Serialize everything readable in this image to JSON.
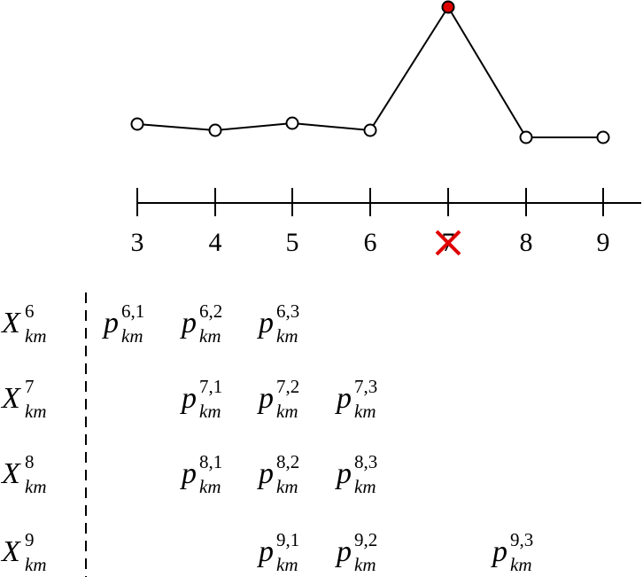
{
  "axis": {
    "ticks": [
      "3",
      "4",
      "5",
      "6",
      "7",
      "8",
      "9"
    ]
  },
  "rows": [
    {
      "label": {
        "base": "X",
        "sup": "6",
        "sub": "km"
      },
      "cells": [
        {
          "base": "p",
          "sup": "6,1",
          "sub": "km"
        },
        {
          "base": "p",
          "sup": "6,2",
          "sub": "km"
        },
        {
          "base": "p",
          "sup": "6,3",
          "sub": "km"
        },
        null,
        null,
        null,
        null
      ]
    },
    {
      "label": {
        "base": "X",
        "sup": "7",
        "sub": "km"
      },
      "cells": [
        null,
        {
          "base": "p",
          "sup": "7,1",
          "sub": "km"
        },
        {
          "base": "p",
          "sup": "7,2",
          "sub": "km"
        },
        {
          "base": "p",
          "sup": "7,3",
          "sub": "km"
        },
        null,
        null,
        null
      ]
    },
    {
      "label": {
        "base": "X",
        "sup": "8",
        "sub": "km"
      },
      "cells": [
        null,
        {
          "base": "p",
          "sup": "8,1",
          "sub": "km"
        },
        {
          "base": "p",
          "sup": "8,2",
          "sub": "km"
        },
        {
          "base": "p",
          "sup": "8,3",
          "sub": "km"
        },
        null,
        null,
        null
      ]
    },
    {
      "label": {
        "base": "X",
        "sup": "9",
        "sub": "km"
      },
      "cells": [
        null,
        null,
        {
          "base": "p",
          "sup": "9,1",
          "sub": "km"
        },
        {
          "base": "p",
          "sup": "9,2",
          "sub": "km"
        },
        null,
        {
          "base": "p",
          "sup": "9,3",
          "sub": "km"
        },
        null
      ]
    }
  ]
}
